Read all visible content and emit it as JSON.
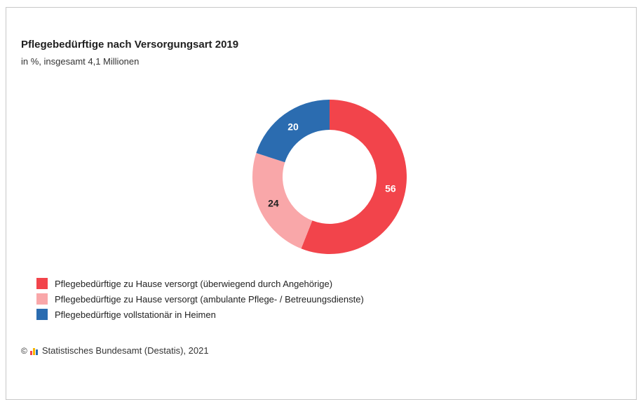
{
  "chart_data": {
    "type": "pie",
    "variant": "donut",
    "title": "Pflegebedürftige nach Versorgungsart 2019",
    "subtitle": "in %, insgesamt 4,1 Millionen",
    "categories": [
      "Pflegebedürftige zu Hause versorgt (überwiegend durch Angehörige)",
      "Pflegebedürftige zu Hause versorgt (ambulante Pflege- / Betreuungsdienste)",
      "Pflegebedürftige vollstationär in Heimen"
    ],
    "values": [
      56,
      24,
      20
    ],
    "value_labels": [
      "56",
      "24",
      "20"
    ],
    "colors": [
      "#f2444b",
      "#f9a7a9",
      "#2b6cb0"
    ],
    "label_colors": [
      "#ffffff",
      "#222222",
      "#ffffff"
    ],
    "legend_placement": "bottom-left"
  },
  "source": {
    "text": "Statistisches Bundesamt (Destatis), 2021",
    "copyright_symbol": "©",
    "logo_icon": "destatis-logo-icon",
    "logo_colors": [
      "#f2444b",
      "#f7b500",
      "#2b6cb0"
    ]
  }
}
